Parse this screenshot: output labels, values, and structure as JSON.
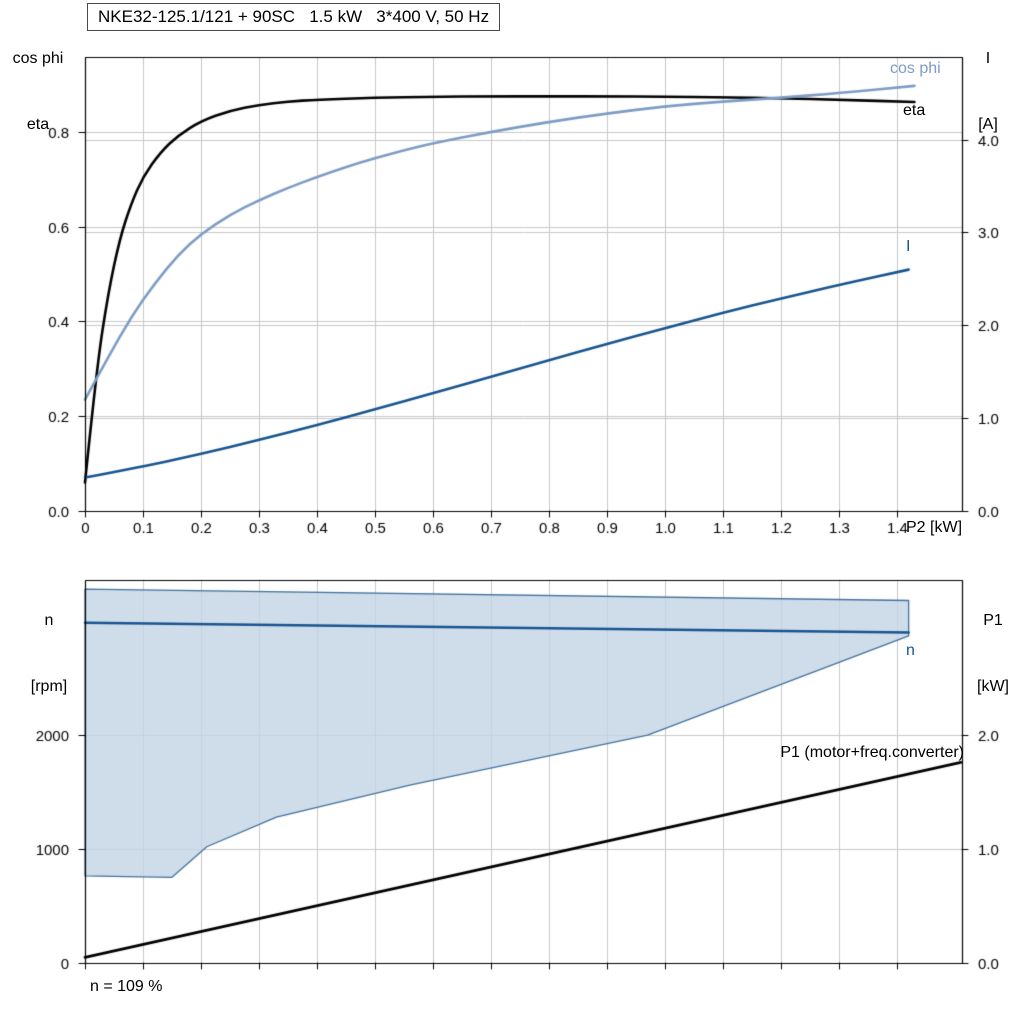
{
  "page": {
    "title_box": "NKE32-125.1/121 + 90SC   1.5 kW   3*400 V, 50 Hz",
    "annotation": "n = 109 %"
  },
  "axis_corner_labels": {
    "top_left": {
      "line1": "cos phi",
      "line2": "eta"
    },
    "top_right": {
      "line1": "I",
      "line2": "[A]"
    },
    "bottom_left": {
      "line1": "n",
      "line2": "[rpm]"
    },
    "bottom_right": {
      "line1": "P1",
      "line2": "[kW]"
    }
  },
  "curve_labels": {
    "cos_phi": "cos phi",
    "eta": "eta",
    "current": "I",
    "speed": "n",
    "p1": "P1 (motor+freq.converter)",
    "x_axis": "P2 [kW]"
  },
  "colors": {
    "eta": "#000000",
    "cos_phi": "#7d9cc5",
    "current": "#17548e",
    "speed": "#17548e",
    "p1": "#000000",
    "envelope_fill": "#c3d4e6",
    "envelope_edge": "#41719c",
    "grid": "#c9c9c9",
    "frame": "#000000"
  },
  "chart_data": [
    {
      "type": "line",
      "title": "NKE32-125.1/121 + 90SC   1.5 kW   3*400 V, 50 Hz",
      "x": {
        "label": "P2 [kW]",
        "min": 0,
        "max": 1.512,
        "ticks": [
          0,
          0.1,
          0.2,
          0.3,
          0.4,
          0.5,
          0.6,
          0.7,
          0.8,
          0.9,
          1.0,
          1.1,
          1.2,
          1.3,
          1.4
        ],
        "tick_labels": [
          "0",
          "0.1",
          "0.2",
          "0.3",
          "0.4",
          "0.5",
          "0.6",
          "0.7",
          "0.8",
          "0.9",
          "1.0",
          "1.1",
          "1.2",
          "1.3",
          "1.4"
        ],
        "show_tick_labels": true
      },
      "y_left": {
        "label": "cos phi / eta",
        "min": 0,
        "max": 0.958,
        "ticks": [
          0.0,
          0.2,
          0.4,
          0.6,
          0.8
        ],
        "tick_labels": [
          "0.0",
          "0.2",
          "0.4",
          "0.6",
          "0.8"
        ]
      },
      "y_right": {
        "label": "I [A]",
        "min": 0,
        "max": 4.89,
        "ticks": [
          0.0,
          1.0,
          2.0,
          3.0,
          4.0
        ],
        "tick_labels": [
          "0.0",
          "1.0",
          "2.0",
          "3.0",
          "4.0"
        ]
      },
      "series": [
        {
          "name": "eta",
          "axis": "left",
          "color": "#000000",
          "width": 2.6,
          "points": [
            [
              0,
              0.06
            ],
            [
              0.02,
              0.3
            ],
            [
              0.04,
              0.46
            ],
            [
              0.06,
              0.575
            ],
            [
              0.08,
              0.65
            ],
            [
              0.1,
              0.705
            ],
            [
              0.13,
              0.757
            ],
            [
              0.16,
              0.792
            ],
            [
              0.2,
              0.823
            ],
            [
              0.25,
              0.845
            ],
            [
              0.3,
              0.857
            ],
            [
              0.35,
              0.864
            ],
            [
              0.4,
              0.868
            ],
            [
              0.5,
              0.872
            ],
            [
              0.6,
              0.874
            ],
            [
              0.7,
              0.875
            ],
            [
              0.8,
              0.875
            ],
            [
              0.9,
              0.875
            ],
            [
              1.0,
              0.874
            ],
            [
              1.1,
              0.873
            ],
            [
              1.2,
              0.871
            ],
            [
              1.3,
              0.868
            ],
            [
              1.43,
              0.863
            ]
          ]
        },
        {
          "name": "cos phi",
          "axis": "left",
          "color": "#7d9cc5",
          "width": 2.6,
          "points": [
            [
              0,
              0.235
            ],
            [
              0.04,
              0.325
            ],
            [
              0.08,
              0.41
            ],
            [
              0.12,
              0.48
            ],
            [
              0.16,
              0.54
            ],
            [
              0.2,
              0.585
            ],
            [
              0.25,
              0.625
            ],
            [
              0.3,
              0.656
            ],
            [
              0.35,
              0.682
            ],
            [
              0.4,
              0.705
            ],
            [
              0.45,
              0.726
            ],
            [
              0.5,
              0.745
            ],
            [
              0.55,
              0.761
            ],
            [
              0.6,
              0.776
            ],
            [
              0.7,
              0.8
            ],
            [
              0.8,
              0.821
            ],
            [
              0.9,
              0.839
            ],
            [
              1.0,
              0.854
            ],
            [
              1.1,
              0.864
            ],
            [
              1.2,
              0.872
            ],
            [
              1.3,
              0.882
            ],
            [
              1.43,
              0.897
            ]
          ]
        },
        {
          "name": "I",
          "axis": "right",
          "color": "#17548e",
          "width": 2.6,
          "points": [
            [
              0,
              0.36
            ],
            [
              0.1,
              0.48
            ],
            [
              0.2,
              0.615
            ],
            [
              0.3,
              0.765
            ],
            [
              0.4,
              0.925
            ],
            [
              0.5,
              1.095
            ],
            [
              0.6,
              1.27
            ],
            [
              0.7,
              1.445
            ],
            [
              0.8,
              1.625
            ],
            [
              0.9,
              1.8
            ],
            [
              1.0,
              1.97
            ],
            [
              1.1,
              2.135
            ],
            [
              1.2,
              2.29
            ],
            [
              1.3,
              2.435
            ],
            [
              1.42,
              2.6
            ]
          ]
        }
      ]
    },
    {
      "type": "line",
      "annotation": "n = 109 %",
      "x": {
        "label": "P2 [kW]",
        "min": 0,
        "max": 1.512,
        "ticks": [
          0,
          0.1,
          0.2,
          0.3,
          0.4,
          0.5,
          0.6,
          0.7,
          0.8,
          0.9,
          1.0,
          1.1,
          1.2,
          1.3,
          1.4
        ],
        "tick_labels": [
          "0",
          "0.1",
          "0.2",
          "0.3",
          "0.4",
          "0.5",
          "0.6",
          "0.7",
          "0.8",
          "0.9",
          "1.0",
          "1.1",
          "1.2",
          "1.3",
          "1.4"
        ],
        "show_tick_labels": false
      },
      "y_left": {
        "label": "n [rpm]",
        "min": 0,
        "max": 3360,
        "ticks": [
          0,
          1000,
          2000
        ],
        "tick_labels": [
          "0",
          "1000",
          "2000"
        ]
      },
      "y_right": {
        "label": "P1 [kW]",
        "min": 0,
        "max": 3.36,
        "ticks": [
          0.0,
          1.0,
          2.0
        ],
        "tick_labels": [
          "0.0",
          "1.0",
          "2.0"
        ]
      },
      "envelope": {
        "name": "speed operating range",
        "axis": "left",
        "points_upper": [
          [
            0,
            3280
          ],
          [
            1.42,
            3180
          ]
        ],
        "points_lower": [
          [
            0,
            765
          ],
          [
            0.15,
            752
          ],
          [
            0.21,
            1020
          ],
          [
            0.33,
            1280
          ],
          [
            0.56,
            1560
          ],
          [
            0.97,
            2000
          ],
          [
            1.42,
            2870
          ]
        ]
      },
      "series": [
        {
          "name": "n",
          "axis": "left",
          "color": "#17548e",
          "width": 2.6,
          "points": [
            [
              0,
              2985
            ],
            [
              1.42,
              2900
            ]
          ]
        },
        {
          "name": "P1 (motor+freq.converter)",
          "axis": "right",
          "color": "#000000",
          "width": 2.8,
          "points": [
            [
              0,
              0.05
            ],
            [
              1.51,
              1.76
            ]
          ]
        }
      ]
    }
  ]
}
